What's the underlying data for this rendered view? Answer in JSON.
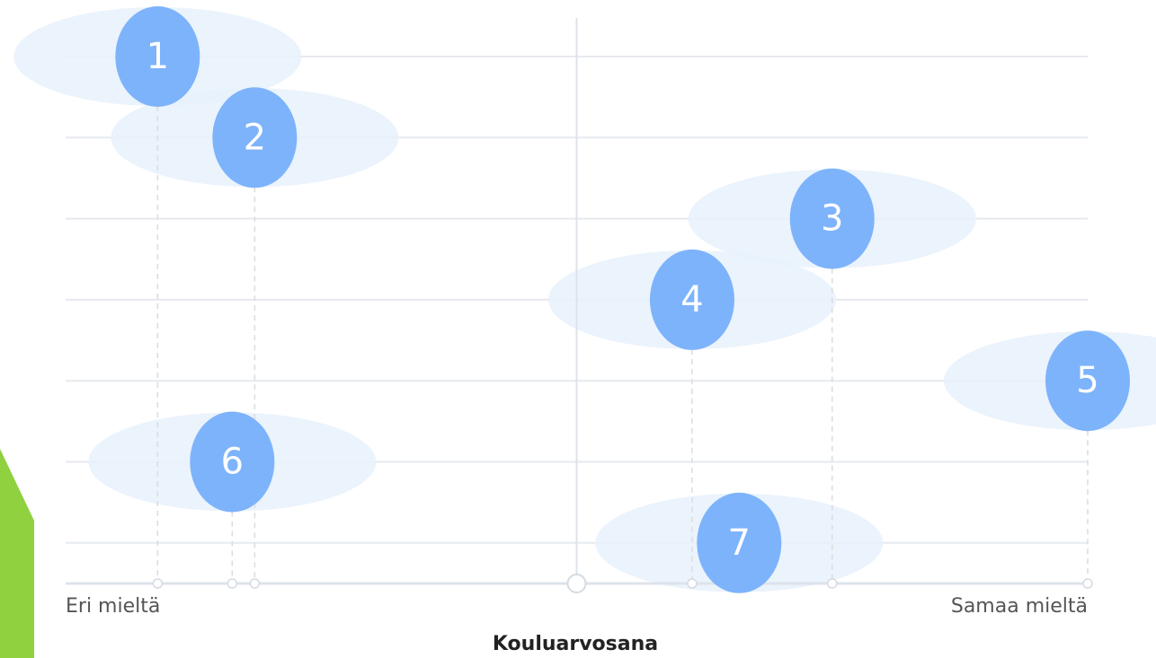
{
  "chart_data": {
    "type": "dot",
    "xlabel": "Kouluarvosana",
    "categories": [
      "1",
      "2",
      "3",
      "4",
      "5",
      "6",
      "7"
    ],
    "values": [
      9,
      18.5,
      75,
      61.3,
      100,
      16.3,
      65.9
    ],
    "color": "#7db3fb",
    "xlim": [
      0,
      100
    ],
    "xticks": [
      {
        "value": 0,
        "label": "Eri mieltä"
      },
      {
        "value": 100,
        "label": "Samaa mieltä"
      }
    ]
  }
}
